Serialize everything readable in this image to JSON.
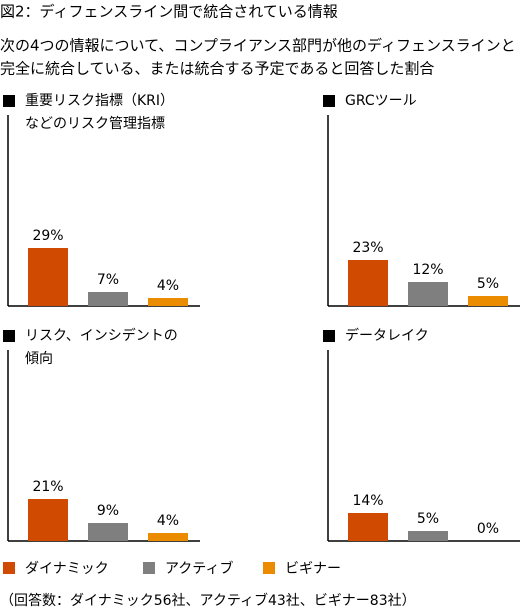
{
  "title": "図2：ディフェンスライン間で統合されている情報",
  "subtitle": [
    "次の4つの情報について、コンプライアンス部門が他のディフェンスラインと",
    "完全に統合している、または統合する予定であると回答した割合"
  ],
  "legend": [
    {
      "name": "ダイナミック",
      "color": "#d04a02"
    },
    {
      "name": "アクティブ",
      "color": "#7f7f7f"
    },
    {
      "name": "ビギナー",
      "color": "#eb8c00"
    }
  ],
  "note": "（回答数：ダイナミック56社、アクティブ43社、ビギナー83社）",
  "chart_data": [
    {
      "type": "bar",
      "title": [
        "重要リスク指標（KRI）",
        "などのリスク管理指標"
      ],
      "values": [
        29,
        7,
        4
      ],
      "value_labels": [
        "29%",
        "7%",
        "4%"
      ]
    },
    {
      "type": "bar",
      "title": [
        "GRCツール"
      ],
      "values": [
        23,
        12,
        5
      ],
      "value_labels": [
        "23%",
        "12%",
        "5%"
      ]
    },
    {
      "type": "bar",
      "title": [
        "リスク、インシデントの",
        "傾向"
      ],
      "values": [
        21,
        9,
        4
      ],
      "value_labels": [
        "21%",
        "9%",
        "4%"
      ]
    },
    {
      "type": "bar",
      "title": [
        "データレイク"
      ],
      "values": [
        14,
        5,
        0
      ],
      "value_labels": [
        "14%",
        "5%",
        "0%"
      ]
    }
  ]
}
